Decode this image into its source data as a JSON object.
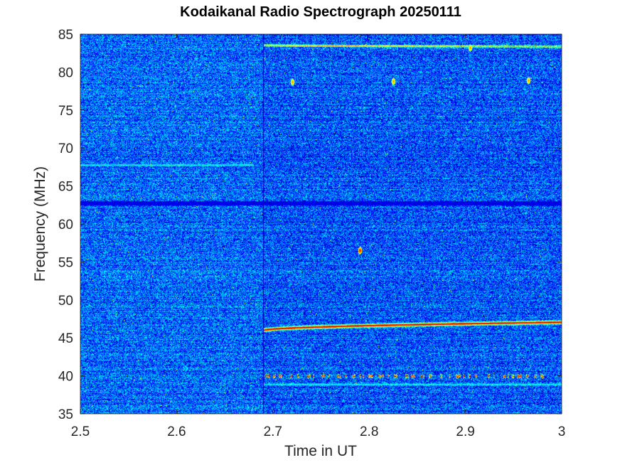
{
  "chart_data": {
    "type": "heatmap",
    "title": "Kodaikanal Radio Spectrograph  20250111",
    "xlabel": "Time in UT",
    "ylabel": "Frequency (MHz)",
    "xlim": [
      2.5,
      3.0
    ],
    "ylim": [
      35,
      85
    ],
    "xticks": [
      "2.5",
      "2.6",
      "2.7",
      "2.8",
      "2.9",
      "3"
    ],
    "yticks": [
      "35",
      "40",
      "45",
      "50",
      "55",
      "60",
      "65",
      "70",
      "75",
      "80",
      "85"
    ],
    "colormap": "jet",
    "background_level": "low",
    "observation_start_ut": 2.69,
    "features": [
      {
        "kind": "band",
        "t_start": 2.69,
        "t_end": 3.0,
        "f_start": 46.0,
        "f_end": 47.1,
        "level": "max"
      },
      {
        "kind": "band",
        "t_start": 2.69,
        "t_end": 3.0,
        "f_start": 83.6,
        "f_end": 83.4,
        "level": "high"
      },
      {
        "kind": "band",
        "t_start": 2.5,
        "t_end": 3.0,
        "f_start": 62.8,
        "f_end": 62.8,
        "level": "low"
      },
      {
        "kind": "band",
        "t_start": 2.69,
        "t_end": 3.0,
        "f_start": 38.9,
        "f_end": 38.9,
        "level": "mid"
      },
      {
        "kind": "band",
        "t_start": 2.5,
        "t_end": 2.68,
        "f_start": 67.8,
        "f_end": 67.8,
        "level": "mid"
      },
      {
        "kind": "spots",
        "t_start": 2.69,
        "t_end": 2.98,
        "f": 40.0,
        "level": "high"
      },
      {
        "kind": "point",
        "t": 2.79,
        "f": 56.5,
        "level": "max"
      },
      {
        "kind": "point",
        "t": 2.72,
        "f": 78.7,
        "level": "high"
      },
      {
        "kind": "point",
        "t": 2.825,
        "f": 78.8,
        "level": "high"
      },
      {
        "kind": "point",
        "t": 2.965,
        "f": 78.9,
        "level": "high"
      },
      {
        "kind": "point",
        "t": 2.905,
        "f": 83.2,
        "level": "high"
      }
    ]
  }
}
